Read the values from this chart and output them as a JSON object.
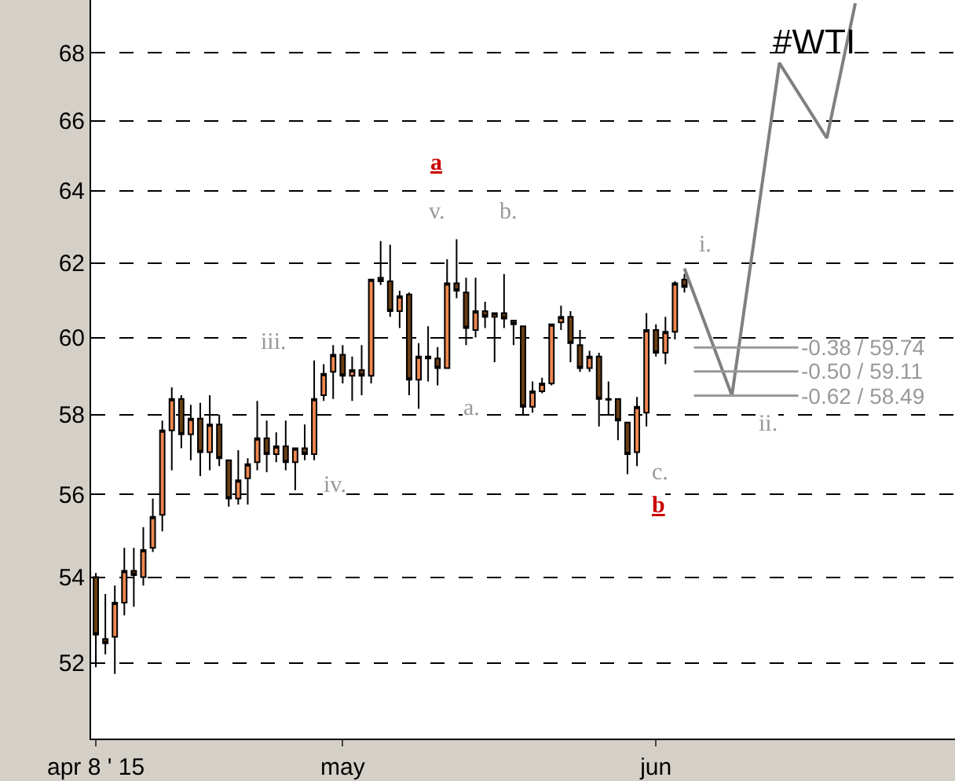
{
  "chart_data": {
    "type": "candlestick",
    "categories": [
      "apr 8 ' 15",
      null,
      null,
      null,
      null,
      null,
      null,
      null,
      null,
      null,
      null,
      null,
      null,
      null,
      null,
      null,
      null,
      null,
      null,
      null,
      null,
      null,
      null,
      null,
      null,
      null,
      "may",
      null,
      null,
      null,
      null,
      null,
      null,
      null,
      null,
      null,
      null,
      null,
      null,
      null,
      null,
      null,
      null,
      null,
      null,
      null,
      null,
      null,
      null,
      null,
      null,
      null,
      null,
      null,
      null,
      null,
      null,
      null,
      null,
      "jun",
      null,
      null,
      null,
      null,
      null,
      null,
      null,
      null,
      null,
      null,
      null,
      null,
      null,
      null,
      null,
      null,
      null,
      null,
      null,
      null,
      null,
      null,
      null,
      null,
      null,
      null,
      null,
      null,
      null,
      null,
      null
    ],
    "ohlc": [
      [
        54.0,
        54.1,
        51.9,
        52.65
      ],
      [
        52.55,
        53.6,
        52.2,
        52.45
      ],
      [
        52.6,
        53.8,
        51.75,
        53.4
      ],
      [
        53.4,
        54.7,
        53.1,
        54.15
      ],
      [
        54.15,
        54.7,
        53.3,
        54.05
      ],
      [
        54.0,
        55.2,
        53.8,
        54.65
      ],
      [
        54.7,
        55.9,
        54.6,
        55.45
      ],
      [
        55.5,
        57.85,
        55.1,
        57.6
      ],
      [
        57.6,
        58.7,
        56.6,
        58.4
      ],
      [
        58.4,
        58.5,
        57.15,
        57.5
      ],
      [
        57.5,
        58.25,
        56.85,
        57.9
      ],
      [
        57.9,
        58.3,
        56.45,
        57.05
      ],
      [
        57.05,
        58.5,
        56.6,
        57.75
      ],
      [
        57.75,
        58.0,
        56.7,
        56.9
      ],
      [
        56.85,
        56.85,
        55.7,
        55.9
      ],
      [
        55.9,
        57.1,
        55.75,
        56.35
      ],
      [
        56.4,
        56.9,
        55.75,
        56.75
      ],
      [
        56.8,
        58.35,
        56.6,
        57.4
      ],
      [
        57.4,
        57.85,
        56.55,
        57.0
      ],
      [
        57.0,
        57.55,
        56.8,
        57.2
      ],
      [
        57.2,
        57.85,
        56.6,
        56.8
      ],
      [
        56.8,
        57.15,
        56.1,
        57.15
      ],
      [
        57.15,
        57.75,
        56.85,
        57.0
      ],
      [
        57.0,
        59.4,
        56.85,
        58.4
      ],
      [
        58.5,
        59.3,
        58.35,
        59.05
      ],
      [
        59.1,
        59.8,
        58.4,
        59.55
      ],
      [
        59.55,
        59.8,
        58.8,
        59.0
      ],
      [
        59.0,
        59.5,
        58.35,
        59.15
      ],
      [
        59.15,
        59.8,
        58.5,
        59.0
      ],
      [
        59.0,
        61.55,
        58.8,
        61.55
      ],
      [
        61.6,
        62.6,
        61.4,
        61.5
      ],
      [
        61.5,
        62.5,
        60.55,
        60.7
      ],
      [
        60.7,
        61.25,
        60.25,
        61.1
      ],
      [
        61.15,
        61.2,
        58.5,
        58.9
      ],
      [
        58.9,
        59.85,
        58.15,
        59.5
      ],
      [
        59.5,
        60.3,
        58.85,
        59.45
      ],
      [
        59.45,
        59.75,
        58.75,
        59.2
      ],
      [
        59.2,
        62.1,
        59.2,
        61.45
      ],
      [
        61.45,
        62.65,
        61.05,
        61.25
      ],
      [
        61.2,
        61.6,
        59.8,
        60.25
      ],
      [
        60.2,
        61.6,
        60.0,
        60.7
      ],
      [
        60.7,
        60.95,
        60.25,
        60.55
      ],
      [
        60.55,
        60.65,
        59.35,
        60.65
      ],
      [
        60.65,
        61.7,
        60.25,
        60.5
      ],
      [
        60.45,
        60.45,
        59.8,
        60.35
      ],
      [
        60.3,
        60.3,
        58.0,
        58.2
      ],
      [
        58.2,
        58.85,
        58.05,
        58.6
      ],
      [
        58.6,
        58.95,
        58.55,
        58.8
      ],
      [
        58.8,
        60.35,
        58.75,
        60.35
      ],
      [
        60.4,
        60.85,
        60.2,
        60.55
      ],
      [
        60.55,
        60.7,
        59.35,
        59.85
      ],
      [
        59.8,
        60.2,
        59.1,
        59.2
      ],
      [
        59.2,
        59.65,
        59.1,
        59.5
      ],
      [
        59.5,
        59.6,
        57.7,
        58.4
      ],
      [
        58.4,
        58.85,
        58.0,
        58.38
      ],
      [
        58.4,
        58.4,
        57.35,
        57.85
      ],
      [
        57.8,
        57.8,
        56.5,
        57.0
      ],
      [
        57.05,
        58.45,
        56.7,
        58.2
      ],
      [
        58.05,
        60.65,
        57.7,
        60.2
      ],
      [
        60.2,
        60.35,
        59.5,
        59.6
      ],
      [
        59.6,
        60.55,
        59.3,
        60.15
      ],
      [
        60.15,
        61.5,
        59.95,
        61.45
      ],
      [
        61.55,
        61.7,
        61.2,
        61.35
      ],
      null,
      null,
      null,
      null,
      null,
      null,
      null,
      null,
      null,
      null,
      null,
      null,
      null,
      null,
      null,
      null,
      null,
      null,
      null,
      null,
      null,
      null,
      null,
      null,
      null,
      null,
      null,
      null
    ],
    "series": [
      {
        "type": "line",
        "color": "#808080",
        "values": [
          null,
          null,
          null,
          null,
          null,
          null,
          null,
          null,
          null,
          null,
          null,
          null,
          null,
          null,
          null,
          null,
          null,
          null,
          null,
          null,
          null,
          null,
          null,
          null,
          null,
          null,
          null,
          null,
          null,
          null,
          null,
          null,
          null,
          null,
          null,
          null,
          null,
          null,
          null,
          null,
          null,
          null,
          null,
          null,
          null,
          null,
          null,
          null,
          null,
          null,
          null,
          null,
          null,
          null,
          null,
          null,
          null,
          null,
          null,
          null,
          null,
          null,
          61.85,
          null,
          null,
          null,
          null,
          58.49,
          null,
          null,
          null,
          null,
          67.7,
          null,
          null,
          null,
          null,
          65.5,
          null,
          null,
          69.5,
          null,
          null,
          null,
          null,
          null,
          null,
          null,
          null,
          null,
          null
        ]
      }
    ],
    "ref_lines": [
      {
        "axis": "y",
        "value": 59.74,
        "label": "-0.38 / 59.74"
      },
      {
        "axis": "y",
        "value": 59.11,
        "label": "-0.50 / 59.11"
      },
      {
        "axis": "y",
        "value": 58.49,
        "label": "-0.62 / 58.49"
      }
    ],
    "annotations": [
      "#WTI",
      "a",
      "v.",
      "b.",
      "iii.",
      "iv.",
      "a.",
      "c.",
      "b",
      "i.",
      "ii."
    ],
    "log": "y",
    "ylim": [
      50.3,
      69.6
    ],
    "yticks": [
      52,
      54,
      56,
      58,
      60,
      62,
      64,
      66,
      68
    ],
    "grid": "y"
  }
}
